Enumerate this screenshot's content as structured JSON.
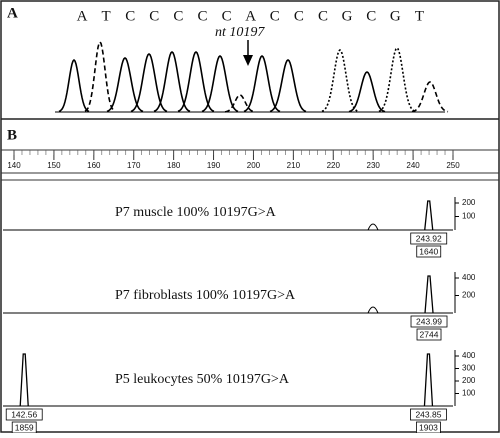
{
  "panel_a": {
    "label": "A",
    "sequence": [
      "A",
      "T",
      "C",
      "C",
      "C",
      "C",
      "C",
      "A",
      "C",
      "C",
      "C",
      "G",
      "C",
      "G",
      "T"
    ],
    "annotation": "nt 10197"
  },
  "panel_b": {
    "label": "B",
    "axis_ticks": [
      140,
      150,
      160,
      170,
      180,
      190,
      200,
      210,
      220,
      230,
      240,
      250
    ],
    "traces": [
      {
        "label": "P7 muscle  100% 10197G>A",
        "yticks": [
          200,
          100
        ],
        "peaks": [
          {
            "size": 243.92,
            "area": 1640
          }
        ]
      },
      {
        "label": "P7 fibroblasts  100% 10197G>A",
        "yticks": [
          400,
          200
        ],
        "peaks": [
          {
            "size": 243.99,
            "area": 2744
          }
        ]
      },
      {
        "label": "P5 leukocytes  50% 10197G>A",
        "yticks": [
          400,
          300,
          200,
          100
        ],
        "peaks": [
          {
            "size": 142.56,
            "area": 1859
          },
          {
            "size": 243.85,
            "area": 1903
          }
        ]
      }
    ]
  }
}
